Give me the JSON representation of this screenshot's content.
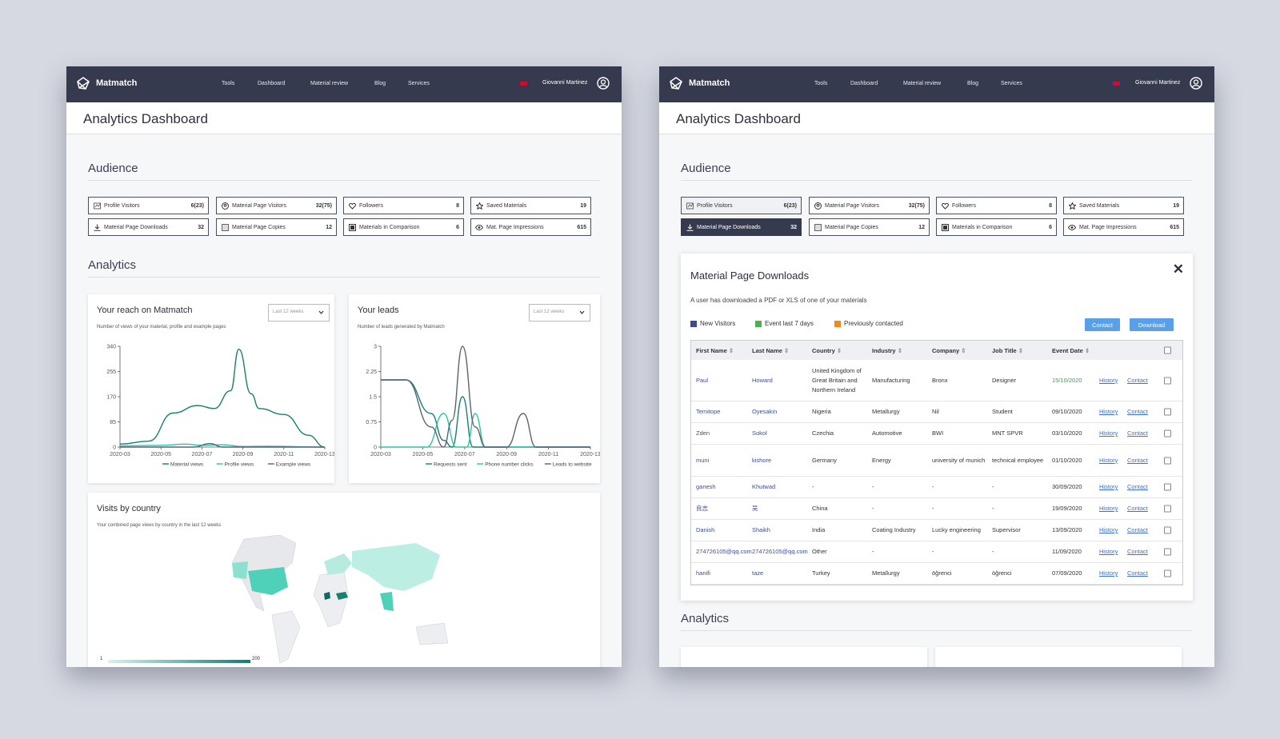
{
  "colors": {
    "navbar": "#353a4f",
    "accent": "#17806f",
    "teal": "#2ec4a9",
    "blue_btn": "#5aa0e8",
    "new_visitors": "#3d4a8f",
    "event_last_7": "#4caf50",
    "prev_contacted": "#f08a1b"
  },
  "app": {
    "brand": "Matmatch",
    "nav": [
      "Tools",
      "Dashboard",
      "Material review",
      "Blog",
      "Services"
    ],
    "user": "Giovanni Martinez",
    "page_title": "Analytics Dashboard"
  },
  "audience": {
    "title": "Audience",
    "stats": [
      {
        "icon": "profile-visitors-icon",
        "label": "Profile Visitors",
        "value": "6(23)"
      },
      {
        "icon": "user-circle-icon",
        "label": "Material Page Visitors",
        "value": "32(75)"
      },
      {
        "icon": "heart-icon",
        "label": "Followers",
        "value": "8"
      },
      {
        "icon": "star-icon",
        "label": "Saved Materials",
        "value": "19"
      },
      {
        "icon": "download-icon",
        "label": "Material Page Downloads",
        "value": "32"
      },
      {
        "icon": "copy-icon",
        "label": "Material Page Copies",
        "value": "12"
      },
      {
        "icon": "compare-icon",
        "label": "Materials in Comparison",
        "value": "6"
      },
      {
        "icon": "eye-icon",
        "label": "Mat. Page Impressions",
        "value": "615"
      }
    ]
  },
  "analytics": {
    "title": "Analytics",
    "reach": {
      "title": "Your reach on Matmatch",
      "subtitle": "Number of views of your material, profile and example pages",
      "select": "Last 12 weeks"
    },
    "leads": {
      "title": "Your leads",
      "subtitle": "Number of leads generated by Matmatch",
      "select": "Last 12 weeks"
    },
    "visits": {
      "title": "Visits by country",
      "subtitle": "Your combined page views by country in the last 12 weeks",
      "scale_min": "1",
      "scale_max": "200"
    }
  },
  "chart_data": [
    {
      "type": "line",
      "title": "Your reach on Matmatch",
      "x": [
        "2020-03",
        "2020-05",
        "2020-07",
        "2020-09",
        "2020-11",
        "2020-13"
      ],
      "ylim": [
        0,
        340
      ],
      "yticks": [
        0,
        85,
        170,
        255,
        340
      ],
      "series": [
        {
          "name": "Material views",
          "color": "#17806f",
          "points": [
            [
              0,
              10
            ],
            [
              0.7,
              20
            ],
            [
              1.3,
              115
            ],
            [
              1.9,
              140
            ],
            [
              2.3,
              130
            ],
            [
              2.7,
              190
            ],
            [
              2.9,
              330
            ],
            [
              3.2,
              180
            ],
            [
              3.4,
              130
            ],
            [
              4,
              110
            ],
            [
              4.6,
              40
            ],
            [
              5,
              0
            ]
          ]
        },
        {
          "name": "Profile views",
          "color": "#2ec4a9",
          "points": [
            [
              0,
              4
            ],
            [
              1,
              6
            ],
            [
              1.6,
              10
            ],
            [
              2,
              6
            ],
            [
              2.5,
              8
            ],
            [
              3,
              2
            ],
            [
              3.6,
              3
            ],
            [
              5,
              0
            ]
          ]
        },
        {
          "name": "Example views",
          "color": "#5b6178",
          "points": [
            [
              0,
              0
            ],
            [
              1.8,
              0
            ],
            [
              2.2,
              12
            ],
            [
              2.5,
              0
            ],
            [
              5,
              0
            ]
          ]
        }
      ]
    },
    {
      "type": "line",
      "title": "Your leads",
      "x": [
        "2020-03",
        "2020-05",
        "2020-07",
        "2020-09",
        "2020-11",
        "2020-13"
      ],
      "ylim": [
        0,
        3
      ],
      "yticks": [
        0,
        0.75,
        1.5,
        2.25,
        3
      ],
      "series": [
        {
          "name": "Requests sent",
          "color": "#17806f",
          "points": [
            [
              0,
              2.0
            ],
            [
              0.6,
              2.0
            ],
            [
              1.2,
              1
            ],
            [
              1.5,
              0.2
            ],
            [
              1.7,
              0
            ],
            [
              1.95,
              1.5
            ],
            [
              2.2,
              0
            ],
            [
              5,
              0
            ]
          ]
        },
        {
          "name": "Phone number clicks",
          "color": "#2ec4a9",
          "points": [
            [
              0,
              0
            ],
            [
              1.1,
              0
            ],
            [
              1.5,
              1.0
            ],
            [
              1.8,
              0
            ],
            [
              2.05,
              0
            ],
            [
              2.25,
              1.0
            ],
            [
              2.5,
              0
            ],
            [
              5,
              0
            ]
          ]
        },
        {
          "name": "Leads to website",
          "color": "#5b6178",
          "points": [
            [
              0,
              2.0
            ],
            [
              0.6,
              2.0
            ],
            [
              1.2,
              0.6
            ],
            [
              1.5,
              0
            ],
            [
              1.7,
              0.8
            ],
            [
              1.95,
              3
            ],
            [
              2.25,
              0.6
            ],
            [
              2.5,
              0
            ],
            [
              3,
              0
            ],
            [
              3.4,
              1.0
            ],
            [
              3.7,
              0
            ],
            [
              5,
              0
            ]
          ]
        }
      ]
    }
  ],
  "downloads": {
    "title": "Material Page Downloads",
    "description": "A user has downloaded a PDF or XLS of one of your materials",
    "legend": [
      "New Visitors",
      "Event last 7 days",
      "Previously contacted"
    ],
    "contact_btn": "Contact",
    "download_btn": "Download",
    "columns": [
      "First Name",
      "Last Name",
      "Country",
      "Industry",
      "Company",
      "Job Title",
      "Event Date"
    ],
    "history": "History",
    "contact": "Contact",
    "rows": [
      [
        "Paul",
        "Howard",
        "United Kingdom of Great Britain and Northern Ireland",
        "Manufacturing",
        "Bronx",
        "Designer",
        "15/10/2020"
      ],
      [
        "Temitope",
        "Oyesakin",
        "Nigeria",
        "Metallurgy",
        "Nil",
        "Student",
        "09/10/2020"
      ],
      [
        "Zden",
        "Sokol",
        "Czechia",
        "Automotive",
        "BWI",
        "MNT SPVR",
        "03/10/2020"
      ],
      [
        "muni",
        "kishore",
        "Germany",
        "Energy",
        "university of munich",
        "technical employee",
        "01/10/2020"
      ],
      [
        "ganesh",
        "Khutwad",
        "-",
        "-",
        "-",
        "-",
        "30/09/2020"
      ],
      [
        "良志",
        "吴",
        "China",
        "-",
        "-",
        "-",
        "19/09/2020"
      ],
      [
        "Danish",
        "Shaikh",
        "India",
        "Coating Industry",
        "Lucky engineering",
        "Supervisor",
        "13/09/2020"
      ],
      [
        "274726105@qq.com",
        "274726105@qq.com",
        "Other",
        "-",
        "-",
        "-",
        "11/09/2020"
      ],
      [
        "hanifi",
        "taze",
        "Turkey",
        "Metallurgy",
        "öğrenci",
        "öğrenci",
        "07/09/2020"
      ]
    ]
  }
}
